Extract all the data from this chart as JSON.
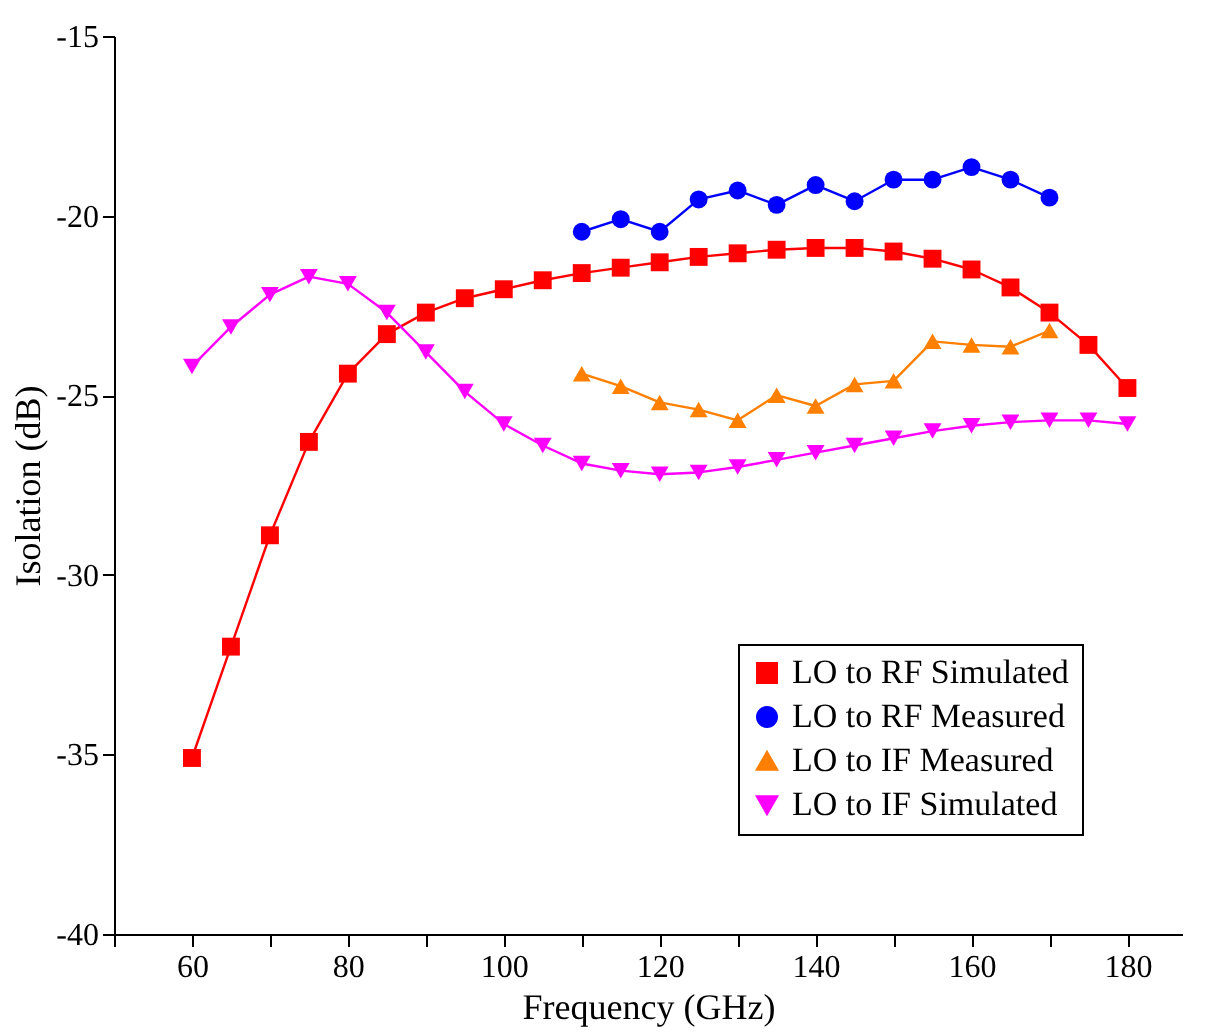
{
  "chart_data": {
    "type": "line",
    "xlabel": "Frequency (GHz)",
    "ylabel": "Isolation (dB)",
    "x": [
      60,
      65,
      70,
      75,
      80,
      85,
      90,
      95,
      100,
      105,
      110,
      115,
      120,
      125,
      130,
      135,
      140,
      145,
      150,
      155,
      160,
      165,
      170,
      175,
      180
    ],
    "series": [
      {
        "name": "LO to RF Simulated",
        "color": "#ff0000",
        "marker": "square",
        "values": [
          -35.1,
          -32.0,
          -28.9,
          -26.3,
          -24.4,
          -23.3,
          -22.7,
          -22.3,
          -22.05,
          -21.8,
          -21.6,
          -21.45,
          -21.3,
          -21.15,
          -21.05,
          -20.95,
          -20.9,
          -20.9,
          -21.0,
          -21.2,
          -21.5,
          -22.0,
          -22.7,
          -23.6,
          -24.8
        ]
      },
      {
        "name": "LO to RF Measured",
        "color": "#0000ff",
        "marker": "circle",
        "x": [
          110,
          115,
          120,
          125,
          130,
          135,
          140,
          145,
          150,
          155,
          160,
          165,
          170
        ],
        "values": [
          -20.45,
          -20.1,
          -20.45,
          -19.55,
          -19.3,
          -19.7,
          -19.15,
          -19.6,
          -19.0,
          -19.0,
          -18.65,
          -19.0,
          -19.5
        ]
      },
      {
        "name": "LO to IF Measured",
        "color": "#ff8000",
        "marker": "triangle",
        "x": [
          110,
          115,
          120,
          125,
          130,
          135,
          140,
          145,
          150,
          155,
          160,
          165,
          170
        ],
        "values": [
          -24.4,
          -24.75,
          -25.2,
          -25.4,
          -25.7,
          -25.0,
          -25.3,
          -24.7,
          -24.6,
          -23.5,
          -23.6,
          -23.65,
          -23.2
        ]
      },
      {
        "name": "LO to IF Simulated",
        "color": "#ff00ff",
        "marker": "triangle-down",
        "values": [
          -24.2,
          -23.1,
          -22.2,
          -21.7,
          -21.9,
          -22.7,
          -23.8,
          -24.9,
          -25.8,
          -26.4,
          -26.9,
          -27.1,
          -27.2,
          -27.15,
          -27.0,
          -26.8,
          -26.6,
          -26.4,
          -26.2,
          -26.0,
          -25.85,
          -25.75,
          -25.7,
          -25.7,
          -25.8
        ]
      }
    ],
    "xlim": [
      50,
      187
    ],
    "xticks": [
      {
        "value": 50,
        "label": null
      },
      60,
      {
        "value": 70,
        "label": null
      },
      80,
      {
        "value": 90,
        "label": null
      },
      100,
      {
        "value": 110,
        "label": null
      },
      120,
      {
        "value": 130,
        "label": null
      },
      140,
      {
        "value": 150,
        "label": null
      },
      160,
      {
        "value": 170,
        "label": null
      },
      180
    ],
    "ylim": [
      -40,
      -15
    ],
    "yticks": [
      -40,
      -35,
      -30,
      -25,
      -20,
      -15
    ],
    "grid": false,
    "legend": "bottom right",
    "line_style": "solid"
  }
}
